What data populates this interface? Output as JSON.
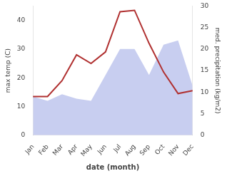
{
  "chart_data": {
    "type": "line",
    "categories": [
      "Jan",
      "Feb",
      "Mar",
      "Apr",
      "May",
      "Jun",
      "Jul",
      "Aug",
      "Sep",
      "Oct",
      "Nov",
      "Dec"
    ],
    "series": [
      {
        "type": "area",
        "color": "#c8cef0",
        "axis": "y2",
        "values": [
          9.0,
          8.0,
          9.5,
          8.5,
          8.0,
          14.0,
          20.0,
          20.0,
          14.0,
          21.0,
          22.0,
          11.5
        ]
      },
      {
        "type": "line",
        "color": "#b03030",
        "values": [
          13.5,
          13.5,
          19.0,
          28.0,
          25.0,
          29.0,
          43.0,
          43.5,
          32.0,
          22.0,
          14.5,
          15.5
        ]
      }
    ],
    "xlabel": "date (month)",
    "ylabel": "max temp (C)",
    "y2label": "med. precipitation (kg/m2)",
    "ylim": [
      0,
      45
    ],
    "yticks": [
      0,
      10,
      20,
      30,
      40
    ],
    "y2lim": [
      0,
      30
    ],
    "y2ticks": [
      0,
      5,
      10,
      15,
      20,
      25,
      30
    ],
    "grid": false
  }
}
